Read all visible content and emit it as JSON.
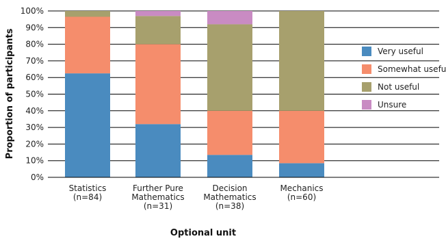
{
  "chart_data": {
    "type": "bar",
    "stacked": true,
    "title": "",
    "xlabel": "Optional unit",
    "ylabel": "Proportion of participants",
    "ylim": [
      0,
      100
    ],
    "yticks": [
      "0%",
      "10%",
      "20%",
      "30%",
      "40%",
      "50%",
      "60%",
      "70%",
      "80%",
      "90%",
      "100%"
    ],
    "categories": [
      [
        "Statistics",
        "(n=84)"
      ],
      [
        "Further Pure",
        "Mathematics",
        "(n=31)"
      ],
      [
        "Decision",
        "Mathematics",
        "(n=38)"
      ],
      [
        "Mechanics",
        "(n=60)"
      ]
    ],
    "series": [
      {
        "name": "Very useful",
        "color": "#4a8bbf",
        "values": [
          62.5,
          32,
          13.5,
          8.5
        ]
      },
      {
        "name": "Somewhat useful",
        "color": "#f58d6c",
        "values": [
          34,
          48,
          26.5,
          31.5
        ]
      },
      {
        "name": "Not useful",
        "color": "#a7a06d",
        "values": [
          3.5,
          17,
          52,
          60
        ]
      },
      {
        "name": "Unsure",
        "color": "#c98bc3",
        "values": [
          0,
          3,
          8,
          0
        ]
      }
    ],
    "grid": true,
    "legend_position": "right"
  }
}
